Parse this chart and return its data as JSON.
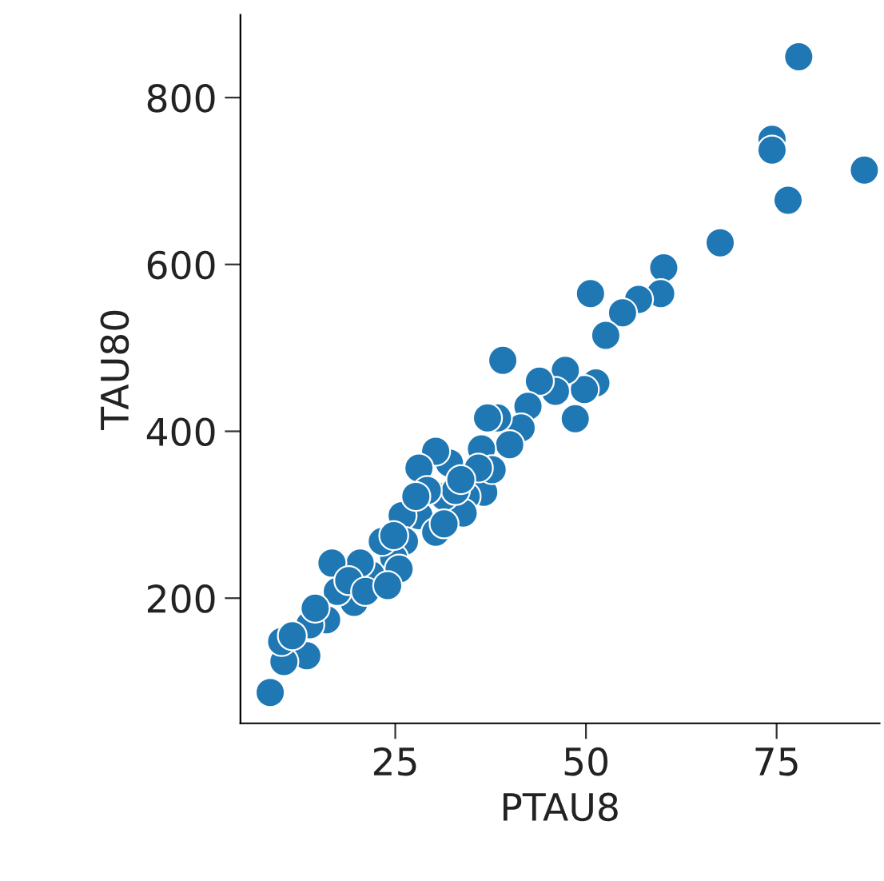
{
  "chart_data": {
    "type": "scatter",
    "xlabel": "PTAU8",
    "ylabel": "TAU80",
    "series": [
      {
        "color": "#1f77b4",
        "x": [
          77.9,
          74.4,
          74.4,
          86.5,
          76.5,
          67.6,
          60.2,
          59.8,
          56.9,
          54.8,
          50.6,
          52.6,
          51.3,
          49.8,
          48.6,
          47.3,
          46.0,
          43.9,
          42.4,
          41.5,
          39.1,
          40.0,
          38.4,
          37.1,
          36.3,
          36.6,
          37.7,
          34.3,
          33.9,
          32.1,
          30.3,
          28.1,
          28.1,
          30.3,
          31.4,
          32.9,
          25.9,
          26.2,
          24.8,
          25.5,
          23.3,
          21.8,
          20.4,
          19.6,
          17.4,
          16.7,
          16.0,
          13.8,
          18.9,
          13.4,
          10.4,
          10.1,
          8.6,
          11.5,
          14.5,
          21.1,
          24.0,
          29.2,
          35.9,
          27.7,
          33.6,
          31.4,
          24.8
        ],
        "values": [
          849,
          750,
          737,
          713,
          677,
          626,
          596,
          565,
          558,
          542,
          565,
          515,
          458,
          450,
          415,
          473,
          448,
          460,
          430,
          404,
          485,
          384,
          416,
          416,
          379,
          327,
          354,
          322,
          302,
          362,
          376,
          356,
          299,
          279,
          322,
          329,
          299,
          268,
          248,
          235,
          268,
          228,
          242,
          195,
          208,
          242,
          174,
          168,
          221,
          131,
          124,
          148,
          87,
          155,
          188,
          208,
          215,
          329,
          356,
          322,
          342,
          289,
          275
        ]
      }
    ],
    "xlim": [
      4.7,
      88.5
    ],
    "ylim": [
      50,
      899
    ],
    "xticks": [
      25,
      50,
      75
    ],
    "yticks": [
      200,
      400,
      600,
      800
    ],
    "marker": "circle",
    "grid": false,
    "legend": false
  }
}
